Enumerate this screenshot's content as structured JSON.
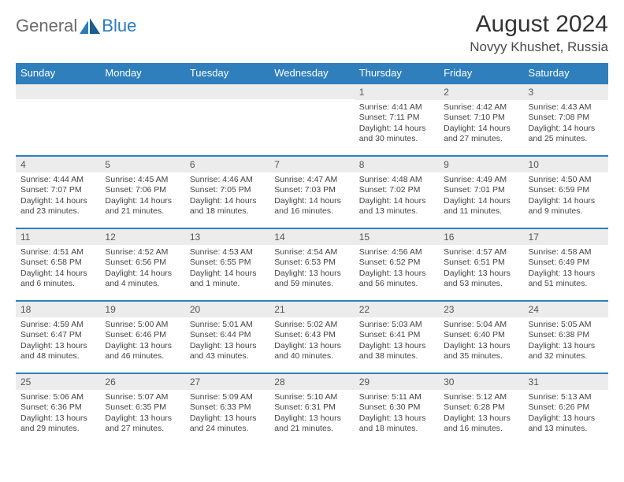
{
  "header": {
    "logo_general": "General",
    "logo_blue": "Blue",
    "month_title": "August 2024",
    "location": "Novyy Khushet, Russia"
  },
  "colors": {
    "header_bg": "#2f7fbd",
    "daynum_bg": "#ececec",
    "border": "#2f7fbd",
    "text": "#333333"
  },
  "weekdays": [
    "Sunday",
    "Monday",
    "Tuesday",
    "Wednesday",
    "Thursday",
    "Friday",
    "Saturday"
  ],
  "cells": [
    {
      "n": "",
      "sr": "",
      "ss": "",
      "dl": ""
    },
    {
      "n": "",
      "sr": "",
      "ss": "",
      "dl": ""
    },
    {
      "n": "",
      "sr": "",
      "ss": "",
      "dl": ""
    },
    {
      "n": "",
      "sr": "",
      "ss": "",
      "dl": ""
    },
    {
      "n": "1",
      "sr": "Sunrise: 4:41 AM",
      "ss": "Sunset: 7:11 PM",
      "dl": "Daylight: 14 hours and 30 minutes."
    },
    {
      "n": "2",
      "sr": "Sunrise: 4:42 AM",
      "ss": "Sunset: 7:10 PM",
      "dl": "Daylight: 14 hours and 27 minutes."
    },
    {
      "n": "3",
      "sr": "Sunrise: 4:43 AM",
      "ss": "Sunset: 7:08 PM",
      "dl": "Daylight: 14 hours and 25 minutes."
    },
    {
      "n": "4",
      "sr": "Sunrise: 4:44 AM",
      "ss": "Sunset: 7:07 PM",
      "dl": "Daylight: 14 hours and 23 minutes."
    },
    {
      "n": "5",
      "sr": "Sunrise: 4:45 AM",
      "ss": "Sunset: 7:06 PM",
      "dl": "Daylight: 14 hours and 21 minutes."
    },
    {
      "n": "6",
      "sr": "Sunrise: 4:46 AM",
      "ss": "Sunset: 7:05 PM",
      "dl": "Daylight: 14 hours and 18 minutes."
    },
    {
      "n": "7",
      "sr": "Sunrise: 4:47 AM",
      "ss": "Sunset: 7:03 PM",
      "dl": "Daylight: 14 hours and 16 minutes."
    },
    {
      "n": "8",
      "sr": "Sunrise: 4:48 AM",
      "ss": "Sunset: 7:02 PM",
      "dl": "Daylight: 14 hours and 13 minutes."
    },
    {
      "n": "9",
      "sr": "Sunrise: 4:49 AM",
      "ss": "Sunset: 7:01 PM",
      "dl": "Daylight: 14 hours and 11 minutes."
    },
    {
      "n": "10",
      "sr": "Sunrise: 4:50 AM",
      "ss": "Sunset: 6:59 PM",
      "dl": "Daylight: 14 hours and 9 minutes."
    },
    {
      "n": "11",
      "sr": "Sunrise: 4:51 AM",
      "ss": "Sunset: 6:58 PM",
      "dl": "Daylight: 14 hours and 6 minutes."
    },
    {
      "n": "12",
      "sr": "Sunrise: 4:52 AM",
      "ss": "Sunset: 6:56 PM",
      "dl": "Daylight: 14 hours and 4 minutes."
    },
    {
      "n": "13",
      "sr": "Sunrise: 4:53 AM",
      "ss": "Sunset: 6:55 PM",
      "dl": "Daylight: 14 hours and 1 minute."
    },
    {
      "n": "14",
      "sr": "Sunrise: 4:54 AM",
      "ss": "Sunset: 6:53 PM",
      "dl": "Daylight: 13 hours and 59 minutes."
    },
    {
      "n": "15",
      "sr": "Sunrise: 4:56 AM",
      "ss": "Sunset: 6:52 PM",
      "dl": "Daylight: 13 hours and 56 minutes."
    },
    {
      "n": "16",
      "sr": "Sunrise: 4:57 AM",
      "ss": "Sunset: 6:51 PM",
      "dl": "Daylight: 13 hours and 53 minutes."
    },
    {
      "n": "17",
      "sr": "Sunrise: 4:58 AM",
      "ss": "Sunset: 6:49 PM",
      "dl": "Daylight: 13 hours and 51 minutes."
    },
    {
      "n": "18",
      "sr": "Sunrise: 4:59 AM",
      "ss": "Sunset: 6:47 PM",
      "dl": "Daylight: 13 hours and 48 minutes."
    },
    {
      "n": "19",
      "sr": "Sunrise: 5:00 AM",
      "ss": "Sunset: 6:46 PM",
      "dl": "Daylight: 13 hours and 46 minutes."
    },
    {
      "n": "20",
      "sr": "Sunrise: 5:01 AM",
      "ss": "Sunset: 6:44 PM",
      "dl": "Daylight: 13 hours and 43 minutes."
    },
    {
      "n": "21",
      "sr": "Sunrise: 5:02 AM",
      "ss": "Sunset: 6:43 PM",
      "dl": "Daylight: 13 hours and 40 minutes."
    },
    {
      "n": "22",
      "sr": "Sunrise: 5:03 AM",
      "ss": "Sunset: 6:41 PM",
      "dl": "Daylight: 13 hours and 38 minutes."
    },
    {
      "n": "23",
      "sr": "Sunrise: 5:04 AM",
      "ss": "Sunset: 6:40 PM",
      "dl": "Daylight: 13 hours and 35 minutes."
    },
    {
      "n": "24",
      "sr": "Sunrise: 5:05 AM",
      "ss": "Sunset: 6:38 PM",
      "dl": "Daylight: 13 hours and 32 minutes."
    },
    {
      "n": "25",
      "sr": "Sunrise: 5:06 AM",
      "ss": "Sunset: 6:36 PM",
      "dl": "Daylight: 13 hours and 29 minutes."
    },
    {
      "n": "26",
      "sr": "Sunrise: 5:07 AM",
      "ss": "Sunset: 6:35 PM",
      "dl": "Daylight: 13 hours and 27 minutes."
    },
    {
      "n": "27",
      "sr": "Sunrise: 5:09 AM",
      "ss": "Sunset: 6:33 PM",
      "dl": "Daylight: 13 hours and 24 minutes."
    },
    {
      "n": "28",
      "sr": "Sunrise: 5:10 AM",
      "ss": "Sunset: 6:31 PM",
      "dl": "Daylight: 13 hours and 21 minutes."
    },
    {
      "n": "29",
      "sr": "Sunrise: 5:11 AM",
      "ss": "Sunset: 6:30 PM",
      "dl": "Daylight: 13 hours and 18 minutes."
    },
    {
      "n": "30",
      "sr": "Sunrise: 5:12 AM",
      "ss": "Sunset: 6:28 PM",
      "dl": "Daylight: 13 hours and 16 minutes."
    },
    {
      "n": "31",
      "sr": "Sunrise: 5:13 AM",
      "ss": "Sunset: 6:26 PM",
      "dl": "Daylight: 13 hours and 13 minutes."
    }
  ]
}
